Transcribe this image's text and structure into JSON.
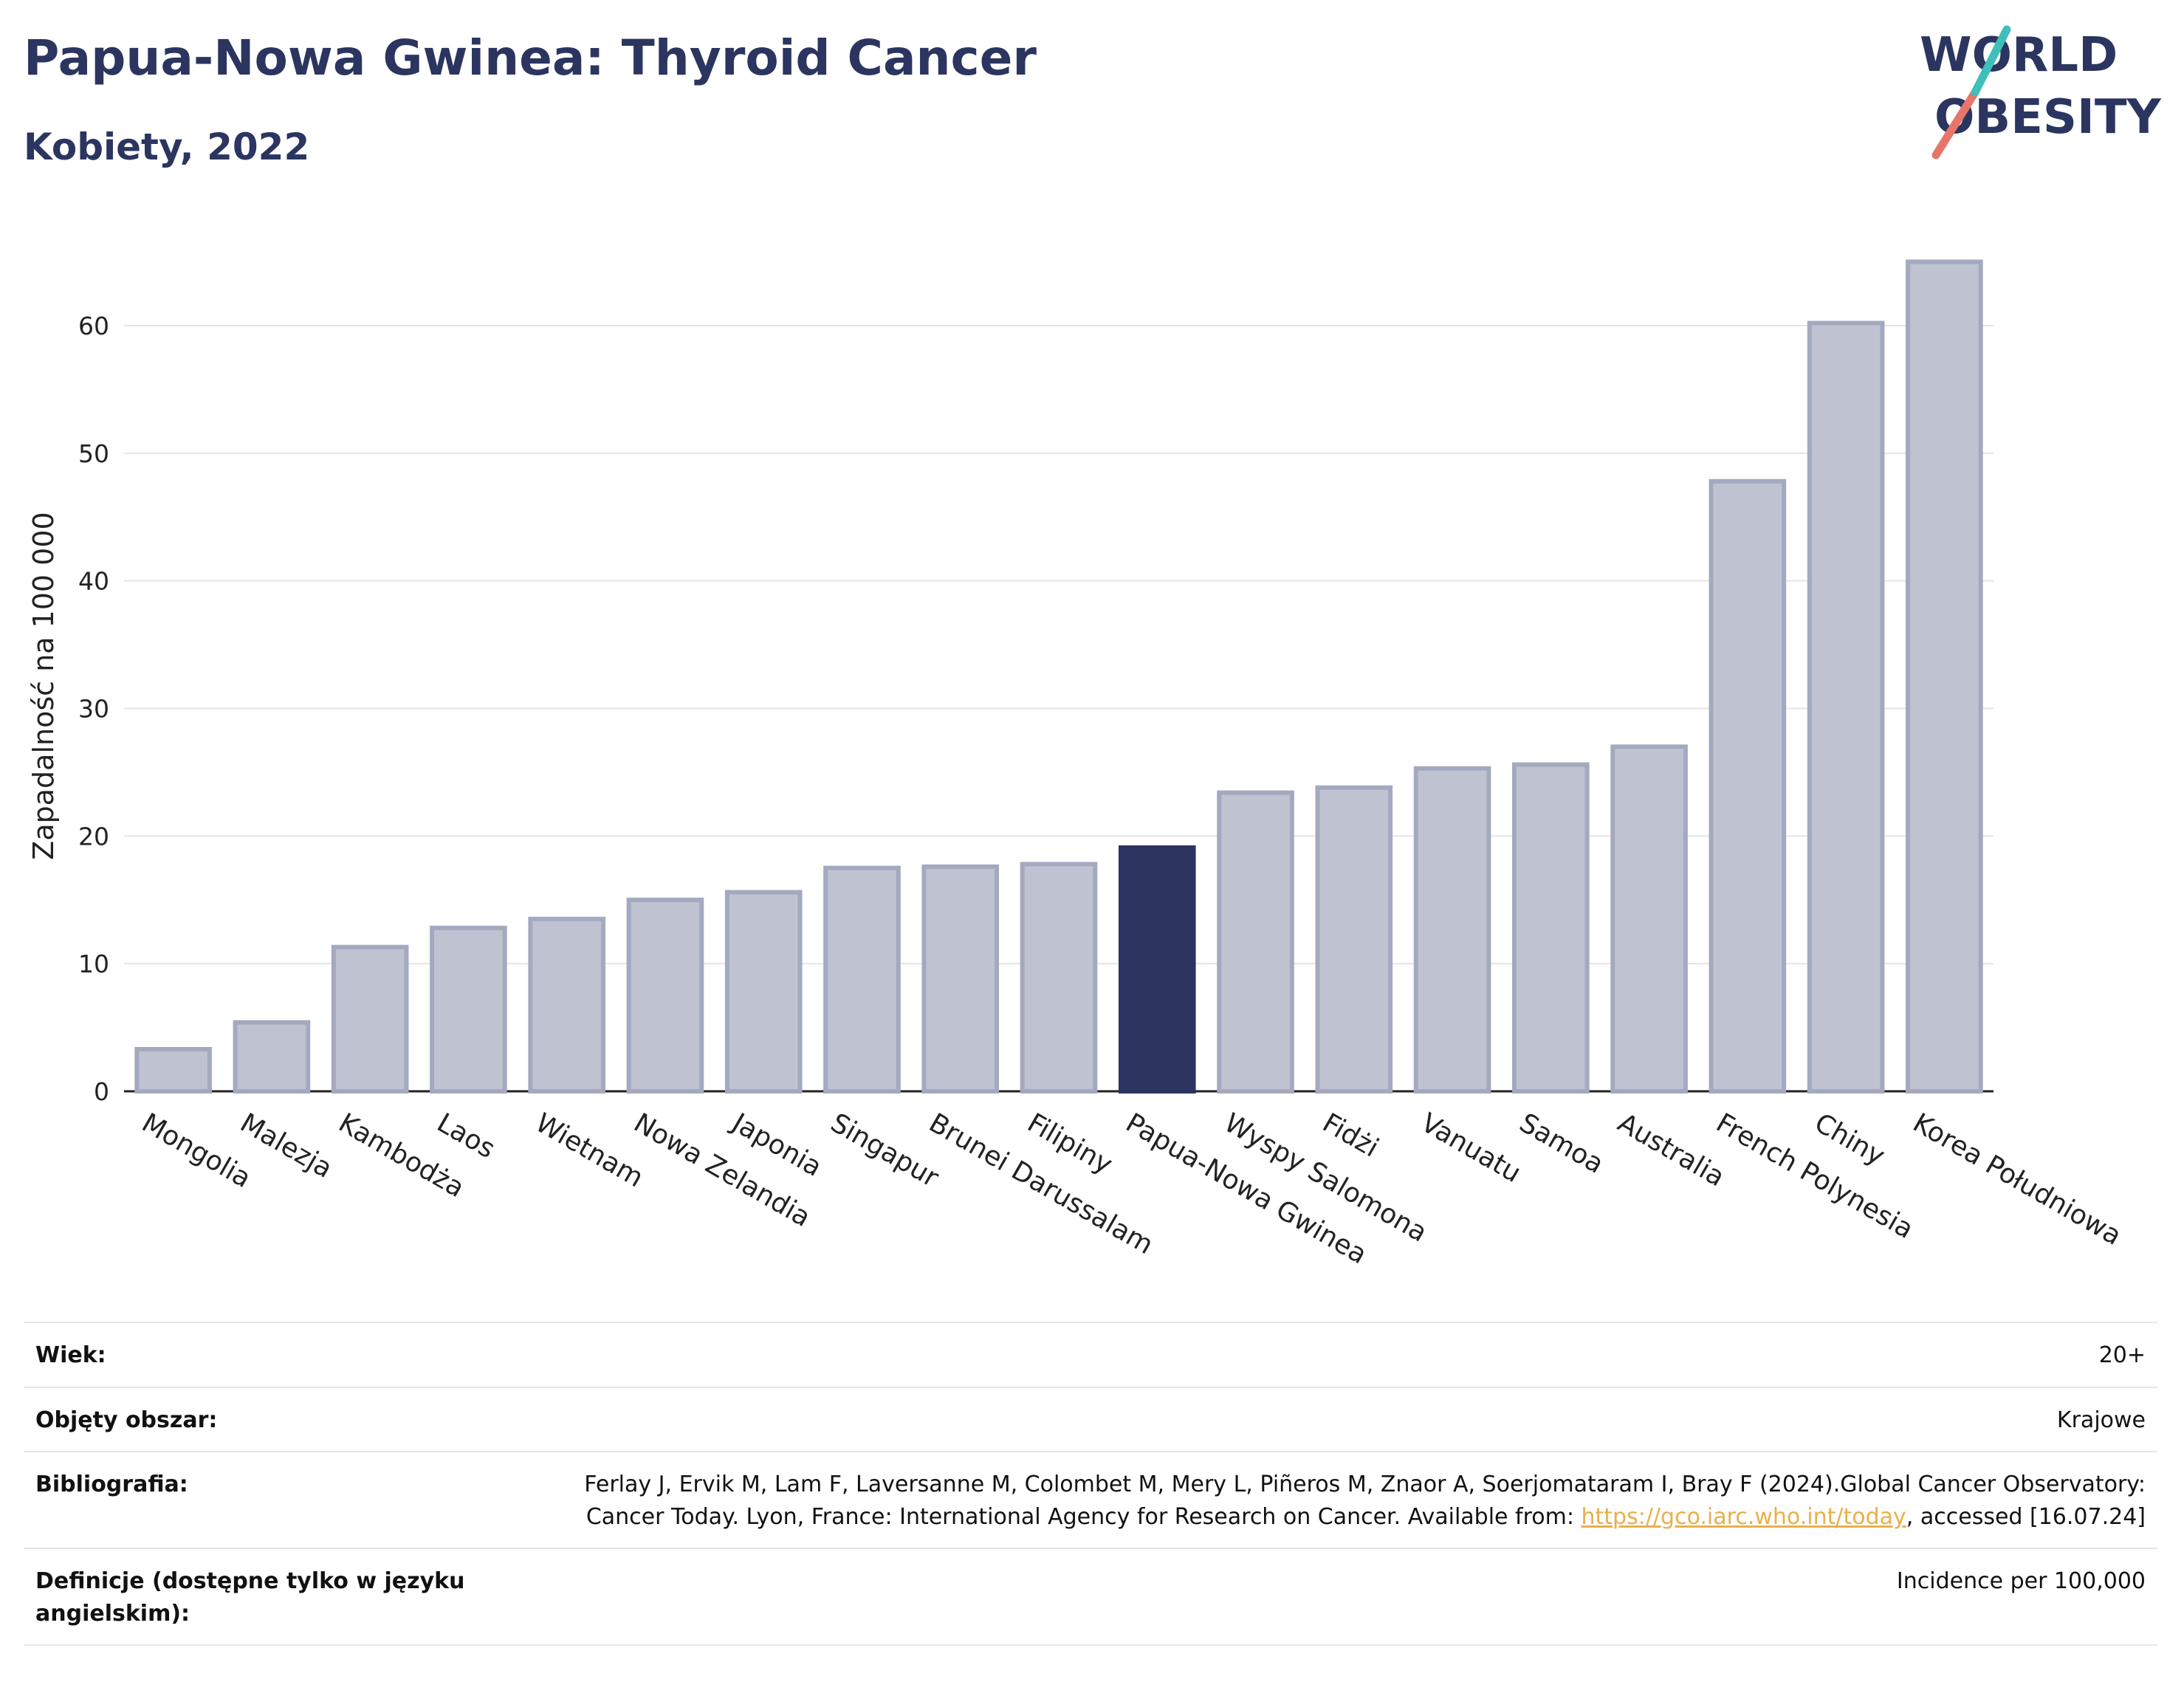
{
  "header": {
    "title": "Papua-Nowa Gwinea: Thyroid Cancer",
    "subtitle": "Kobiety, 2022"
  },
  "logo": {
    "line1": "WORLD",
    "line2": "OBESITY"
  },
  "colors": {
    "highlight": "#2b3560",
    "bar": "#bfc3d1",
    "bar_edge": "#a3a9bf",
    "gridline": "#e5e5e5"
  },
  "chart_data": {
    "type": "bar",
    "title": "Papua-Nowa Gwinea: Thyroid Cancer",
    "subtitle": "Kobiety, 2022",
    "ylabel": "Zapadalność na 100 000",
    "xlabel": "",
    "ylim": [
      0,
      67
    ],
    "yticks": [
      0,
      10,
      20,
      30,
      40,
      50,
      60
    ],
    "grid": true,
    "highlight": "Papua-Nowa Gwinea",
    "categories": [
      "Mongolia",
      "Malezja",
      "Kambodża",
      "Laos",
      "Wietnam",
      "Nowa Zelandia",
      "Japonia",
      "Singapur",
      "Brunei Darussalam",
      "Filipiny",
      "Papua-Nowa Gwinea",
      "Wyspy Salomona",
      "Fidżi",
      "Vanuatu",
      "Samoa",
      "Australia",
      "French Polynesia",
      "Chiny",
      "Korea Południowa"
    ],
    "values": [
      3.3,
      5.4,
      11.3,
      12.8,
      13.5,
      15.0,
      15.6,
      17.5,
      17.6,
      17.8,
      19.1,
      23.4,
      23.8,
      25.3,
      25.6,
      27.0,
      47.8,
      60.2,
      65.0
    ]
  },
  "meta": {
    "rows": [
      {
        "label": "Wiek:",
        "value": "20+"
      },
      {
        "label": "Objęty obszar:",
        "value": "Krajowe"
      },
      {
        "label": "Bibliografia:",
        "value_before": "Ferlay J, Ervik M, Lam F, Laversanne M, Colombet M, Mery L, Piñeros M, Znaor A, Soerjomataram I, Bray F (2024).Global Cancer Observatory: Cancer Today. Lyon, France: International Agency for Research on Cancer. Available from: ",
        "link": "https://gco.iarc.who.int/today",
        "value_after": ", accessed [16.07.24]"
      },
      {
        "label": "Definicje (dostępne tylko w języku angielskim):",
        "value": "Incidence per 100,000"
      }
    ]
  }
}
